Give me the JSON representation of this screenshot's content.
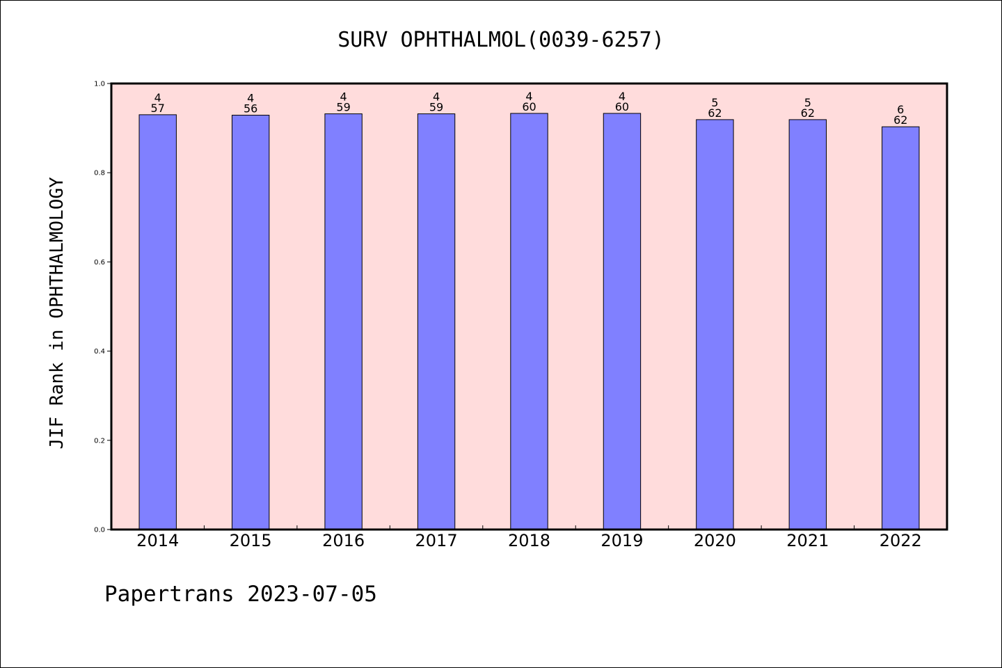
{
  "chart_data": {
    "type": "bar",
    "title": "SURV OPHTHALMOL(0039-6257)",
    "xlabel": "",
    "ylabel": "JIF Rank in OPHTHALMOLOGY",
    "ylim": [
      0,
      1.0
    ],
    "yticks": [
      "0.0",
      "0.2",
      "0.4",
      "0.6",
      "0.8",
      "1.0"
    ],
    "categories": [
      "2014",
      "2015",
      "2016",
      "2017",
      "2018",
      "2019",
      "2020",
      "2021",
      "2022"
    ],
    "values": [
      0.93,
      0.929,
      0.932,
      0.932,
      0.933,
      0.933,
      0.919,
      0.919,
      0.903
    ],
    "rank": [
      "4",
      "4",
      "4",
      "4",
      "4",
      "4",
      "5",
      "5",
      "6"
    ],
    "total": [
      "57",
      "56",
      "59",
      "59",
      "60",
      "60",
      "62",
      "62",
      "62"
    ],
    "grid": false,
    "colors": {
      "bar": "#8080ff",
      "plot_background": "#ffdcdc",
      "outline": "#000000"
    }
  },
  "footer": "Papertrans 2023-07-05"
}
